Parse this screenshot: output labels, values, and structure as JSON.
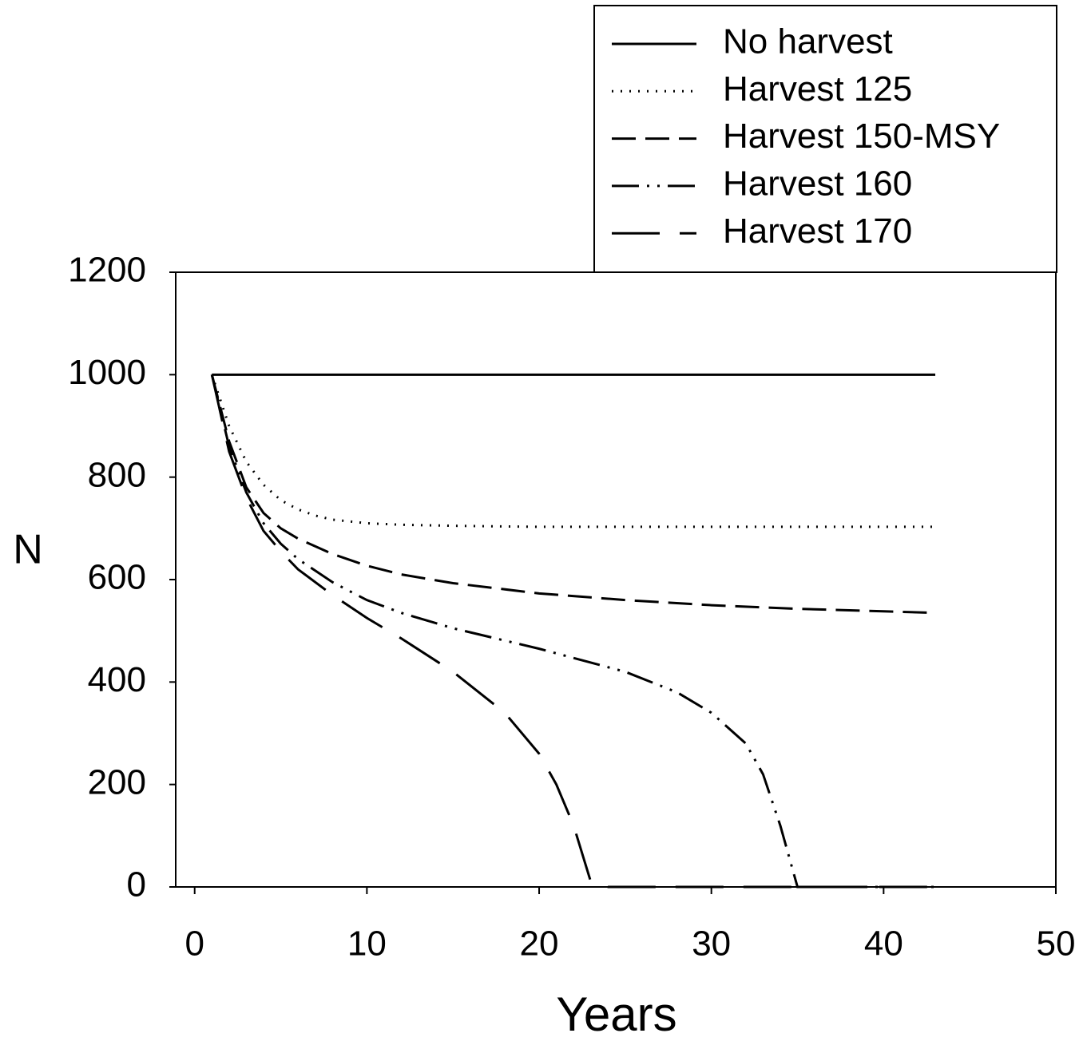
{
  "chart_data": {
    "type": "line",
    "x_label": "Years",
    "y_label": "N",
    "xlim": [
      -1.1,
      50
    ],
    "ylim": [
      0,
      1200
    ],
    "xticks": [
      0,
      10,
      20,
      30,
      40,
      50
    ],
    "yticks": [
      0,
      200,
      400,
      600,
      800,
      1000,
      1200
    ],
    "grid": false,
    "legend": "top-right",
    "series": [
      {
        "name": "No harvest",
        "color": "#000000",
        "dash": "solid",
        "x": [
          1,
          43
        ],
        "values": [
          1000,
          1000
        ]
      },
      {
        "name": "Harvest 125",
        "color": "#000000",
        "dash": "dotted",
        "x": [
          1,
          2,
          3,
          4,
          5,
          6,
          7,
          8,
          10,
          12,
          15,
          20,
          25,
          30,
          35,
          40,
          43
        ],
        "values": [
          1000,
          900,
          830,
          785,
          755,
          737,
          725,
          717,
          710,
          707,
          705,
          703,
          703,
          703,
          703,
          703,
          703
        ]
      },
      {
        "name": "Harvest 150-MSY",
        "color": "#000000",
        "dash": "dashed",
        "x": [
          1,
          2,
          3,
          4,
          5,
          6,
          8,
          10,
          12,
          15,
          20,
          25,
          30,
          35,
          40,
          43
        ],
        "values": [
          1000,
          870,
          780,
          730,
          700,
          680,
          650,
          627,
          610,
          593,
          573,
          560,
          550,
          543,
          538,
          535
        ]
      },
      {
        "name": "Harvest 160",
        "color": "#000000",
        "dash": "dash-dot-dot",
        "x": [
          1,
          2,
          3,
          4,
          5,
          6,
          8,
          10,
          12,
          15,
          20,
          25,
          28,
          30,
          32,
          33,
          34,
          35,
          38,
          43
        ],
        "values": [
          1000,
          860,
          770,
          710,
          670,
          640,
          595,
          560,
          535,
          505,
          465,
          420,
          380,
          340,
          280,
          220,
          120,
          0,
          0,
          0
        ]
      },
      {
        "name": "Harvest 170",
        "color": "#000000",
        "dash": "long-dash",
        "x": [
          1,
          2,
          3,
          4,
          5,
          6,
          8,
          10,
          12,
          15,
          18,
          20,
          21,
          22,
          23,
          24,
          30,
          43
        ],
        "values": [
          1000,
          850,
          760,
          695,
          655,
          620,
          570,
          525,
          485,
          420,
          340,
          260,
          200,
          120,
          10,
          0,
          0,
          0
        ]
      }
    ]
  }
}
